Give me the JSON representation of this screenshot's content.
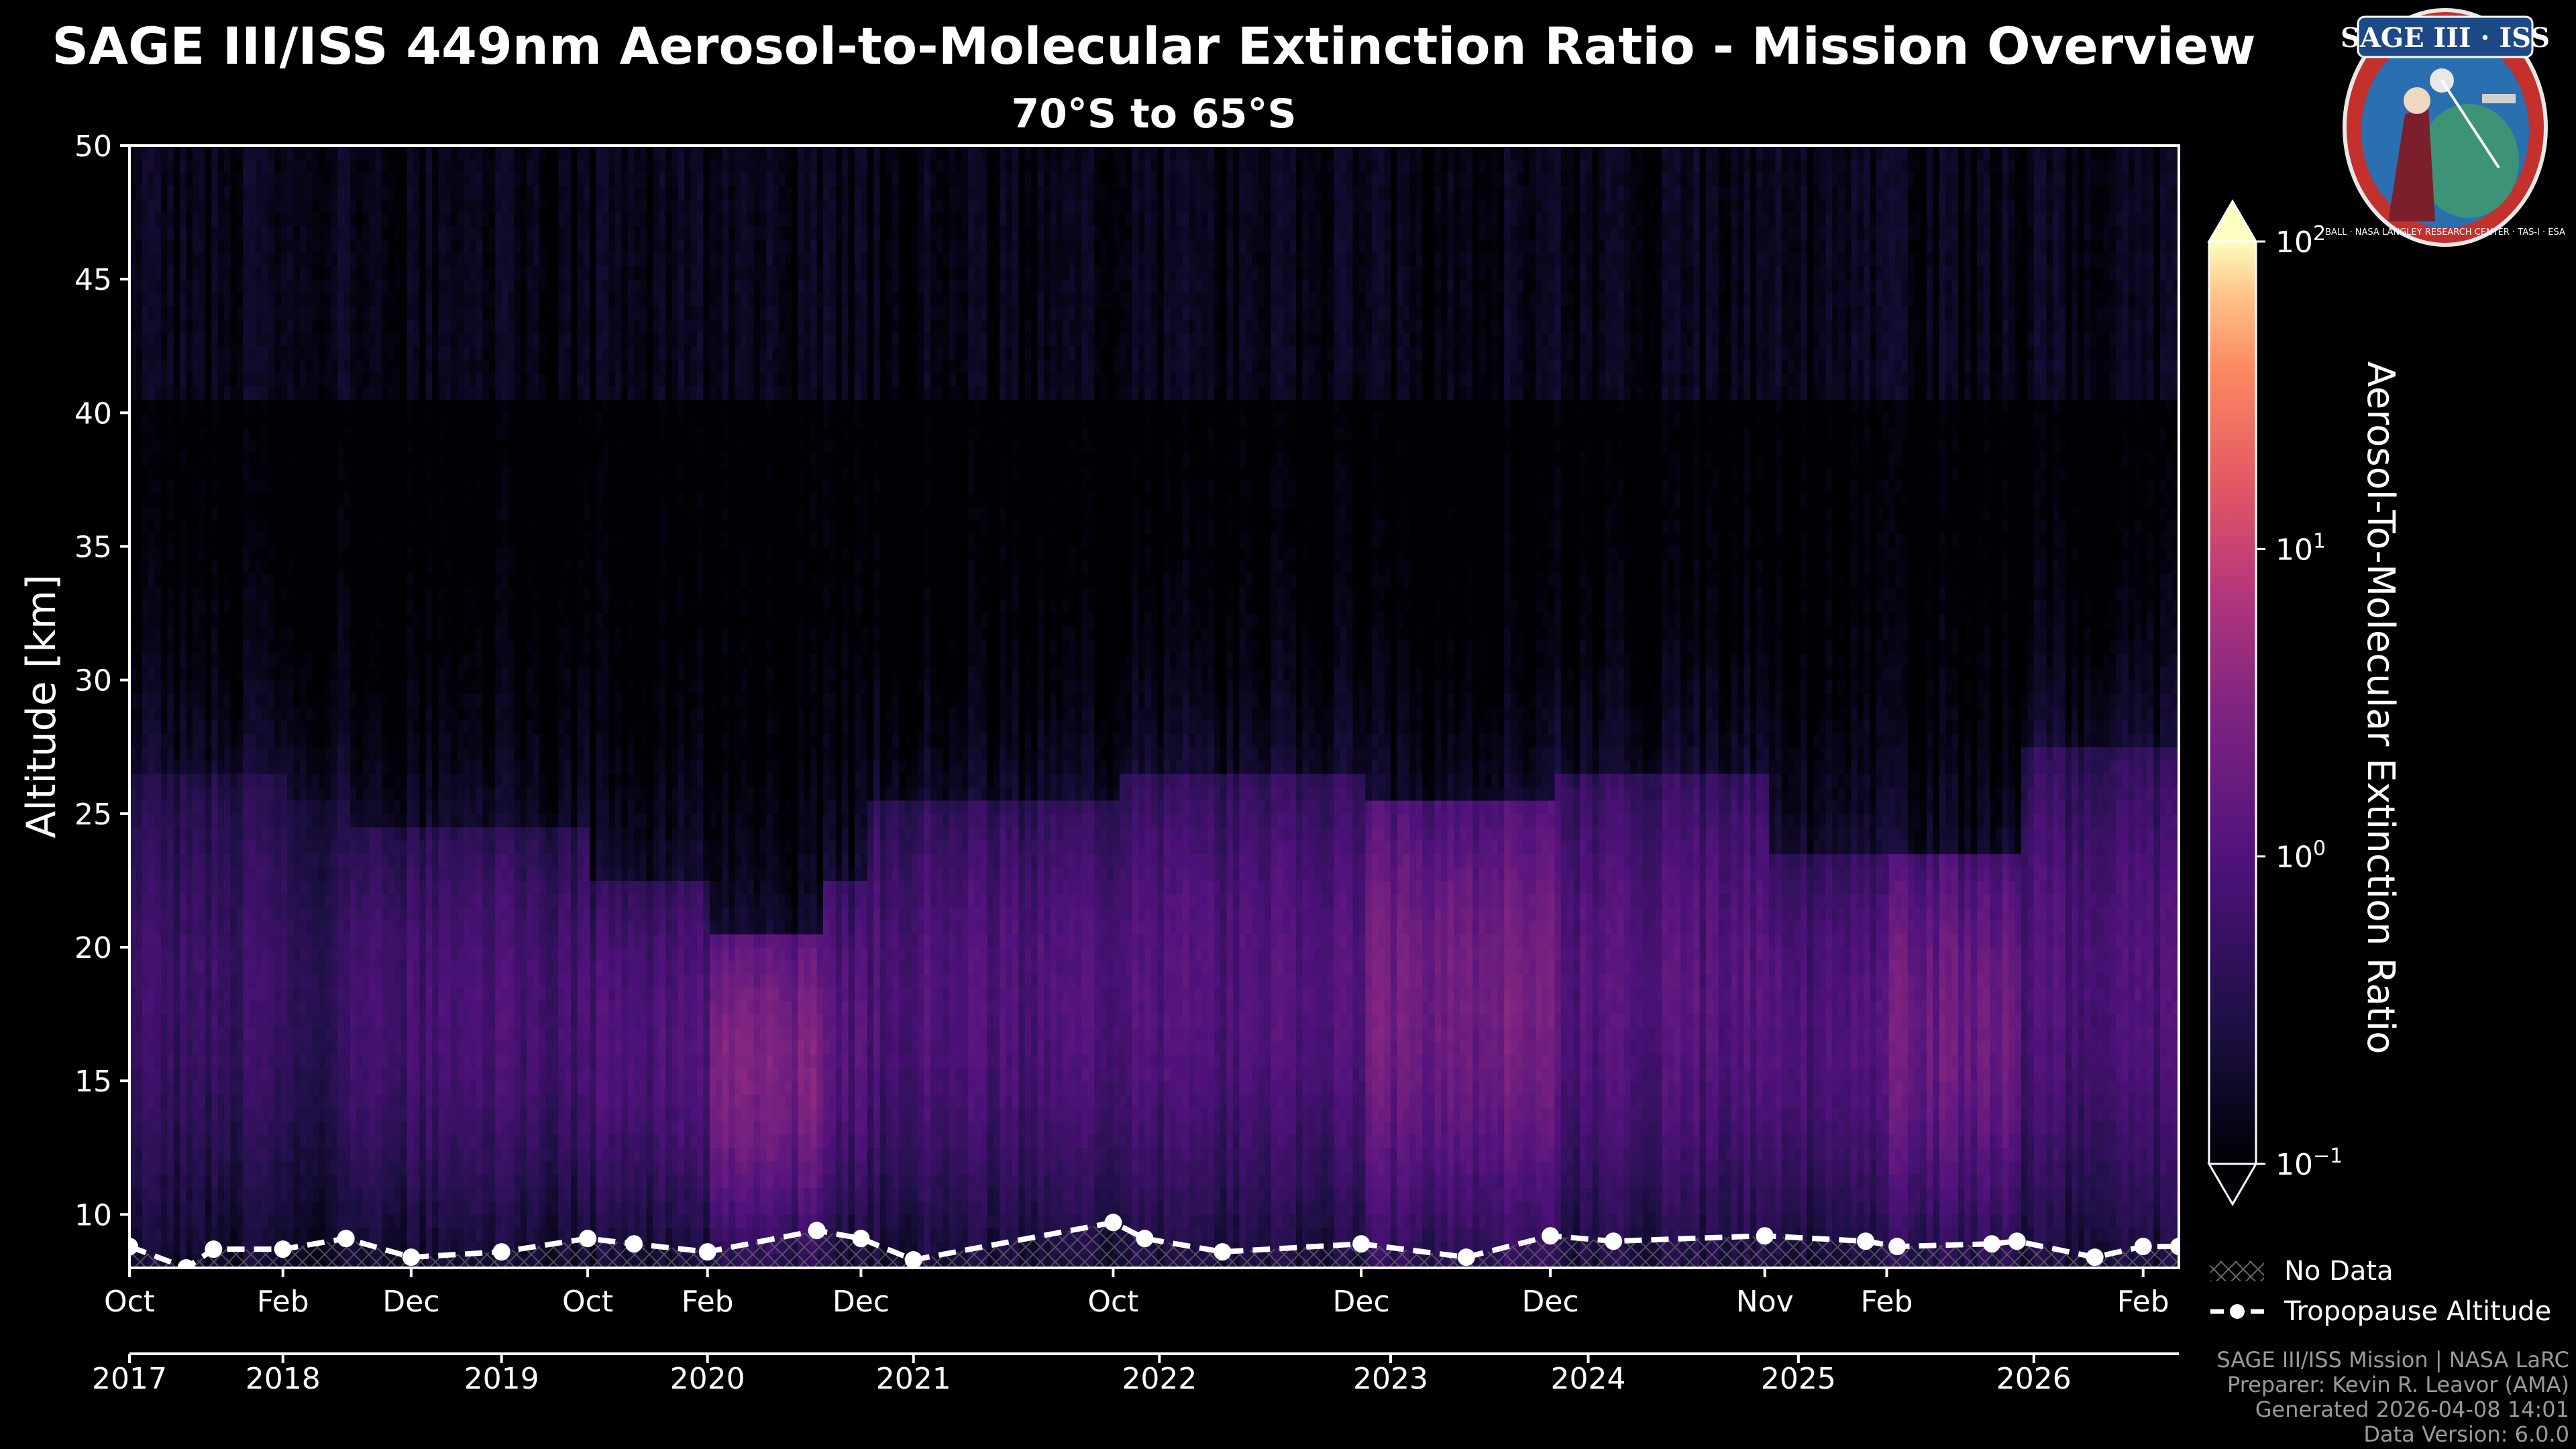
{
  "chart_data": {
    "type": "heatmap",
    "title": "SAGE III/ISS 449nm Aerosol-to-Molecular Extinction Ratio - Mission Overview",
    "subtitle": "70°S to 65°S",
    "ylabel": "Altitude [km]",
    "ylim": [
      8,
      50
    ],
    "yticks": [
      10,
      15,
      20,
      25,
      30,
      35,
      40,
      45,
      50
    ],
    "xlim": [
      2017.0,
      2026.75
    ],
    "month_ticks": [
      {
        "label": "Oct",
        "t": 2017.0
      },
      {
        "label": "Feb",
        "t": 2017.73
      },
      {
        "label": "Dec",
        "t": 2018.34
      },
      {
        "label": "Oct",
        "t": 2019.18
      },
      {
        "label": "Feb",
        "t": 2019.75
      },
      {
        "label": "Dec",
        "t": 2020.48
      },
      {
        "label": "Oct",
        "t": 2021.68
      },
      {
        "label": "Dec",
        "t": 2022.86
      },
      {
        "label": "Dec",
        "t": 2023.76
      },
      {
        "label": "Nov",
        "t": 2024.78
      },
      {
        "label": "Feb",
        "t": 2025.36
      },
      {
        "label": "Feb",
        "t": 2026.58
      }
    ],
    "year_ticks": [
      {
        "label": "2017",
        "t": 2017.0
      },
      {
        "label": "2018",
        "t": 2017.73
      },
      {
        "label": "2019",
        "t": 2018.77
      },
      {
        "label": "2020",
        "t": 2019.75
      },
      {
        "label": "2021",
        "t": 2020.73
      },
      {
        "label": "2022",
        "t": 2021.9
      },
      {
        "label": "2023",
        "t": 2023.0
      },
      {
        "label": "2024",
        "t": 2023.94
      },
      {
        "label": "2025",
        "t": 2024.94
      },
      {
        "label": "2026",
        "t": 2026.06
      }
    ],
    "colorbar": {
      "label": "Aerosol-To-Molecular Extinction Ratio",
      "scale": "log",
      "range": [
        0.1,
        100
      ],
      "ticks": [
        {
          "base": "10",
          "exp": "2",
          "value": 100
        },
        {
          "base": "10",
          "exp": "1",
          "value": 10
        },
        {
          "base": "10",
          "exp": "0",
          "value": 1
        },
        {
          "base": "10",
          "exp": "−1",
          "value": 0.1
        }
      ],
      "colormap": "inferno/magma"
    },
    "tropopause": {
      "name": "Tropopause Altitude",
      "t": [
        2017.0,
        2017.27,
        2017.4,
        2017.73,
        2018.03,
        2018.34,
        2018.77,
        2019.18,
        2019.4,
        2019.75,
        2020.27,
        2020.48,
        2020.73,
        2021.68,
        2021.83,
        2022.2,
        2022.86,
        2023.36,
        2023.76,
        2024.06,
        2024.78,
        2025.26,
        2025.41,
        2025.86,
        2025.98,
        2026.35,
        2026.58,
        2026.75
      ],
      "alt_km": [
        8.8,
        8.0,
        8.7,
        8.7,
        9.1,
        8.4,
        8.6,
        9.1,
        8.9,
        8.6,
        9.4,
        9.1,
        8.3,
        9.7,
        9.1,
        8.6,
        8.9,
        8.4,
        9.2,
        9.0,
        9.2,
        9.0,
        8.8,
        8.9,
        9.0,
        8.4,
        8.8,
        8.8
      ]
    },
    "aerosol_layer": [
      {
        "t_start": 2017.0,
        "t_end": 2017.73,
        "top_km": 26,
        "peak_ratio": 0.45
      },
      {
        "t_start": 2017.73,
        "t_end": 2018.03,
        "top_km": 25,
        "peak_ratio": 0.3
      },
      {
        "t_start": 2018.03,
        "t_end": 2019.18,
        "top_km": 24,
        "peak_ratio": 0.7
      },
      {
        "t_start": 2019.18,
        "t_end": 2019.75,
        "top_km": 22,
        "peak_ratio": 0.8
      },
      {
        "t_start": 2019.75,
        "t_end": 2020.27,
        "top_km": 20,
        "peak_ratio": 2.5
      },
      {
        "t_start": 2020.27,
        "t_end": 2020.48,
        "top_km": 22,
        "peak_ratio": 1.0
      },
      {
        "t_start": 2020.48,
        "t_end": 2021.68,
        "top_km": 25,
        "peak_ratio": 0.9
      },
      {
        "t_start": 2021.68,
        "t_end": 2022.86,
        "top_km": 26,
        "peak_ratio": 0.9
      },
      {
        "t_start": 2022.86,
        "t_end": 2023.76,
        "top_km": 25,
        "peak_ratio": 2.2
      },
      {
        "t_start": 2023.76,
        "t_end": 2024.78,
        "top_km": 26,
        "peak_ratio": 1.0
      },
      {
        "t_start": 2024.78,
        "t_end": 2025.36,
        "top_km": 23,
        "peak_ratio": 0.8
      },
      {
        "t_start": 2025.36,
        "t_end": 2025.98,
        "top_km": 23,
        "peak_ratio": 1.8
      },
      {
        "t_start": 2025.98,
        "t_end": 2026.75,
        "top_km": 27,
        "peak_ratio": 0.8
      }
    ],
    "legend": [
      {
        "label": "No Data",
        "kind": "hatch"
      },
      {
        "label": "Tropopause Altitude",
        "kind": "dashed-line-marker"
      }
    ]
  },
  "logo": {
    "title": "SAGE III · ISS",
    "ring_text": "BALL · NASA LANGLEY RESEARCH CENTER · TAS-I · ESA"
  },
  "footer": {
    "line1": "SAGE III/ISS Mission | NASA LaRC",
    "line2": "Preparer: Kevin R. Leavor (AMA)",
    "line3": "Generated 2026-04-08 14:01",
    "line4": "Data Version: 6.0.0"
  },
  "colors": {
    "background": "#000000",
    "text": "#ffffff",
    "footer_text": "#9a9a9a",
    "tropopause": "#ffffff",
    "logo_ring": "#c4302b",
    "logo_field": "#2a6fb0"
  }
}
